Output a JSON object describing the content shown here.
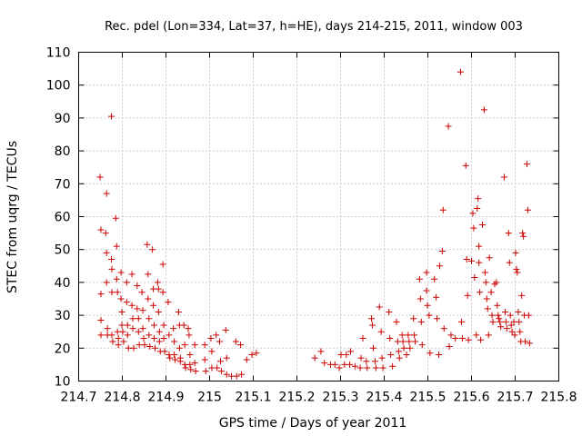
{
  "chart_data": {
    "type": "scatter",
    "title": "Rec. pdel (Lon=334, Lat=37, h=HE), days 214-215, 2011, window 003",
    "xlabel": "GPS time / Days of year 2011",
    "ylabel": "STEC from uqrg / TECUs",
    "xlim": [
      214.7,
      215.8
    ],
    "ylim": [
      10,
      110
    ],
    "xticks": [
      "214.7",
      "214.8",
      "214.9",
      "215",
      "215.1",
      "215.2",
      "215.3",
      "215.4",
      "215.5",
      "215.6",
      "215.7",
      "215.8"
    ],
    "yticks": [
      "10",
      "20",
      "30",
      "40",
      "50",
      "60",
      "70",
      "80",
      "90",
      "100",
      "110"
    ],
    "grid": true,
    "marker": "+",
    "color": "#cc0000",
    "points": [
      [
        214.749,
        72
      ],
      [
        214.751,
        56
      ],
      [
        214.751,
        36.5
      ],
      [
        214.751,
        28.5
      ],
      [
        214.751,
        24
      ],
      [
        214.764,
        67
      ],
      [
        214.762,
        55
      ],
      [
        214.764,
        49
      ],
      [
        214.764,
        40
      ],
      [
        214.766,
        26
      ],
      [
        214.766,
        24
      ],
      [
        214.775,
        90.5
      ],
      [
        214.775,
        47
      ],
      [
        214.776,
        44
      ],
      [
        214.776,
        37
      ],
      [
        214.776,
        24
      ],
      [
        214.778,
        22
      ],
      [
        214.785,
        59.5
      ],
      [
        214.787,
        51
      ],
      [
        214.787,
        41
      ],
      [
        214.789,
        37
      ],
      [
        214.789,
        25
      ],
      [
        214.791,
        23
      ],
      [
        214.791,
        21
      ],
      [
        214.797,
        43
      ],
      [
        214.797,
        35
      ],
      [
        214.799,
        31
      ],
      [
        214.799,
        27
      ],
      [
        214.801,
        25
      ],
      [
        214.803,
        22
      ],
      [
        214.81,
        40
      ],
      [
        214.81,
        34
      ],
      [
        214.812,
        27
      ],
      [
        214.812,
        24
      ],
      [
        214.814,
        20
      ],
      [
        214.822,
        42.5
      ],
      [
        214.822,
        33
      ],
      [
        214.824,
        29
      ],
      [
        214.824,
        26
      ],
      [
        214.826,
        20
      ],
      [
        214.834,
        39
      ],
      [
        214.834,
        32
      ],
      [
        214.837,
        29
      ],
      [
        214.837,
        25
      ],
      [
        214.839,
        21
      ],
      [
        214.845,
        37
      ],
      [
        214.847,
        31.5
      ],
      [
        214.847,
        26
      ],
      [
        214.849,
        23
      ],
      [
        214.851,
        21
      ],
      [
        214.857,
        51.5
      ],
      [
        214.859,
        42.5
      ],
      [
        214.859,
        35
      ],
      [
        214.861,
        29
      ],
      [
        214.861,
        24
      ],
      [
        214.863,
        20.5
      ],
      [
        214.869,
        50
      ],
      [
        214.871,
        38
      ],
      [
        214.871,
        33
      ],
      [
        214.873,
        27
      ],
      [
        214.873,
        23
      ],
      [
        214.875,
        20
      ],
      [
        214.881,
        40
      ],
      [
        214.883,
        38
      ],
      [
        214.883,
        31
      ],
      [
        214.885,
        25
      ],
      [
        214.885,
        22
      ],
      [
        214.887,
        19
      ],
      [
        214.893,
        45.5
      ],
      [
        214.893,
        37
      ],
      [
        214.895,
        27
      ],
      [
        214.895,
        23
      ],
      [
        214.897,
        19
      ],
      [
        214.905,
        34
      ],
      [
        214.907,
        24
      ],
      [
        214.907,
        18
      ],
      [
        214.909,
        17
      ],
      [
        214.917,
        26
      ],
      [
        214.919,
        22
      ],
      [
        214.919,
        18
      ],
      [
        214.921,
        16.5
      ],
      [
        214.929,
        31
      ],
      [
        214.931,
        27
      ],
      [
        214.931,
        20
      ],
      [
        214.933,
        17
      ],
      [
        214.933,
        16
      ],
      [
        214.941,
        27
      ],
      [
        214.943,
        21
      ],
      [
        214.943,
        15
      ],
      [
        214.945,
        14
      ],
      [
        214.951,
        26
      ],
      [
        214.953,
        24
      ],
      [
        214.955,
        18
      ],
      [
        214.955,
        15
      ],
      [
        214.957,
        13.5
      ],
      [
        214.966,
        21
      ],
      [
        214.966,
        15.5
      ],
      [
        214.968,
        13
      ],
      [
        214.989,
        21
      ],
      [
        214.989,
        16.5
      ],
      [
        214.991,
        13
      ],
      [
        215.003,
        23
      ],
      [
        215.005,
        19
      ],
      [
        215.005,
        14
      ],
      [
        215.015,
        24
      ],
      [
        215.017,
        14
      ],
      [
        215.023,
        22
      ],
      [
        215.025,
        16
      ],
      [
        215.027,
        13
      ],
      [
        215.037,
        25.5
      ],
      [
        215.039,
        17
      ],
      [
        215.039,
        12
      ],
      [
        215.05,
        11.5
      ],
      [
        215.06,
        22
      ],
      [
        215.062,
        11.5
      ],
      [
        215.071,
        21
      ],
      [
        215.073,
        12
      ],
      [
        215.085,
        16.5
      ],
      [
        215.097,
        18
      ],
      [
        215.107,
        18.5
      ],
      [
        215.241,
        17
      ],
      [
        215.255,
        19
      ],
      [
        215.263,
        15.5
      ],
      [
        215.277,
        15
      ],
      [
        215.287,
        15
      ],
      [
        215.297,
        14
      ],
      [
        215.301,
        18
      ],
      [
        215.309,
        15
      ],
      [
        215.313,
        18
      ],
      [
        215.321,
        15
      ],
      [
        215.323,
        19
      ],
      [
        215.333,
        14.5
      ],
      [
        215.345,
        14
      ],
      [
        215.347,
        17
      ],
      [
        215.351,
        23
      ],
      [
        215.359,
        16
      ],
      [
        215.361,
        14
      ],
      [
        215.371,
        29
      ],
      [
        215.373,
        27
      ],
      [
        215.375,
        20
      ],
      [
        215.379,
        16
      ],
      [
        215.381,
        14
      ],
      [
        215.389,
        32.5
      ],
      [
        215.393,
        25
      ],
      [
        215.395,
        17
      ],
      [
        215.397,
        14
      ],
      [
        215.411,
        31
      ],
      [
        215.413,
        23
      ],
      [
        215.415,
        18
      ],
      [
        215.419,
        14.5
      ],
      [
        215.428,
        28
      ],
      [
        215.431,
        22
      ],
      [
        215.433,
        19
      ],
      [
        215.435,
        17
      ],
      [
        215.441,
        24
      ],
      [
        215.443,
        22
      ],
      [
        215.445,
        20
      ],
      [
        215.451,
        18
      ],
      [
        215.455,
        24
      ],
      [
        215.457,
        22
      ],
      [
        215.459,
        20
      ],
      [
        215.467,
        29
      ],
      [
        215.469,
        24
      ],
      [
        215.471,
        22
      ],
      [
        215.481,
        41
      ],
      [
        215.483,
        35
      ],
      [
        215.485,
        28
      ],
      [
        215.487,
        21
      ],
      [
        215.497,
        43
      ],
      [
        215.497,
        37.5
      ],
      [
        215.499,
        33
      ],
      [
        215.503,
        30
      ],
      [
        215.505,
        18.5
      ],
      [
        215.515,
        41
      ],
      [
        215.519,
        35.5
      ],
      [
        215.521,
        29
      ],
      [
        215.525,
        18
      ],
      [
        215.527,
        45
      ],
      [
        215.533,
        49.5
      ],
      [
        215.535,
        62
      ],
      [
        215.537,
        26
      ],
      [
        215.547,
        87.5
      ],
      [
        215.549,
        20.5
      ],
      [
        215.553,
        24
      ],
      [
        215.563,
        23
      ],
      [
        215.575,
        104
      ],
      [
        215.577,
        28
      ],
      [
        215.579,
        23
      ],
      [
        215.587,
        75.5
      ],
      [
        215.589,
        47
      ],
      [
        215.591,
        36
      ],
      [
        215.593,
        22.5
      ],
      [
        215.6,
        46.5
      ],
      [
        215.603,
        61
      ],
      [
        215.605,
        56.5
      ],
      [
        215.607,
        41.5
      ],
      [
        215.611,
        24
      ],
      [
        215.613,
        62.5
      ],
      [
        215.615,
        65.5
      ],
      [
        215.617,
        51
      ],
      [
        215.617,
        46
      ],
      [
        215.619,
        37
      ],
      [
        215.621,
        22.5
      ],
      [
        215.625,
        57.5
      ],
      [
        215.629,
        92.5
      ],
      [
        215.631,
        43
      ],
      [
        215.633,
        40
      ],
      [
        215.635,
        35
      ],
      [
        215.637,
        32
      ],
      [
        215.639,
        24
      ],
      [
        215.641,
        47.5
      ],
      [
        215.645,
        37
      ],
      [
        215.647,
        30
      ],
      [
        215.649,
        28
      ],
      [
        215.653,
        39.5
      ],
      [
        215.657,
        40
      ],
      [
        215.659,
        33
      ],
      [
        215.661,
        30
      ],
      [
        215.663,
        29
      ],
      [
        215.665,
        28
      ],
      [
        215.667,
        26.5
      ],
      [
        215.675,
        72
      ],
      [
        215.677,
        31
      ],
      [
        215.679,
        28
      ],
      [
        215.681,
        26
      ],
      [
        215.685,
        55
      ],
      [
        215.687,
        46
      ],
      [
        215.689,
        30
      ],
      [
        215.691,
        27
      ],
      [
        215.693,
        25
      ],
      [
        215.697,
        28
      ],
      [
        215.699,
        24
      ],
      [
        215.701,
        49
      ],
      [
        215.703,
        44
      ],
      [
        215.705,
        43
      ],
      [
        215.707,
        31
      ],
      [
        215.709,
        28
      ],
      [
        215.711,
        25
      ],
      [
        215.713,
        22
      ],
      [
        215.715,
        36
      ],
      [
        215.717,
        55
      ],
      [
        215.719,
        54
      ],
      [
        215.721,
        30
      ],
      [
        215.723,
        22
      ],
      [
        215.727,
        76
      ],
      [
        215.729,
        62
      ],
      [
        215.731,
        30
      ],
      [
        215.733,
        21.5
      ]
    ]
  }
}
